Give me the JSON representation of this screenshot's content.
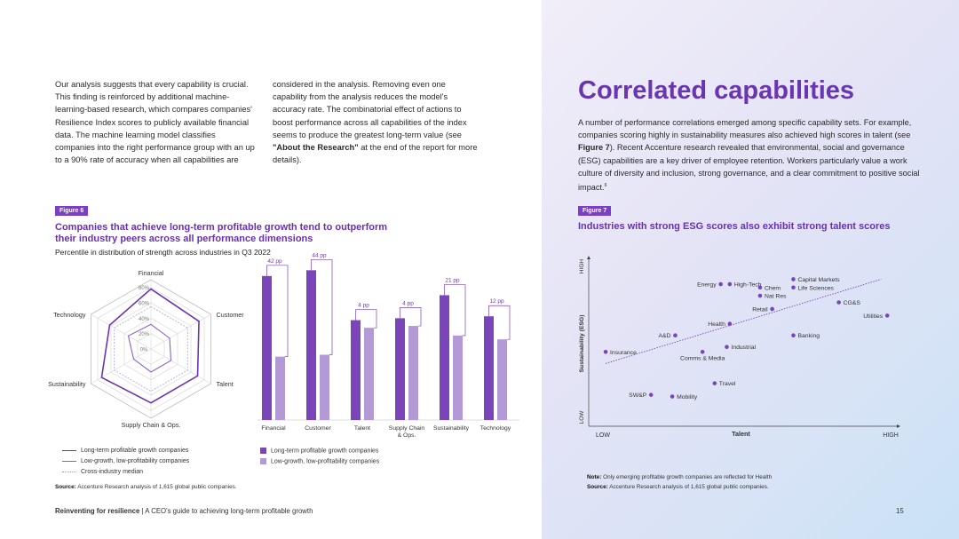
{
  "left": {
    "col1": "Our analysis suggests that every capability is crucial. This finding is reinforced by additional machine-learning-based research, which compares companies' Resilience Index scores to publicly available financial data. The machine learning model classifies companies into the right performance group with an up to a 90% rate of accuracy when all capabilities are",
    "col2_a": "considered in the analysis. Removing even one capability from the analysis reduces the model's accuracy rate. The combinatorial effect of actions to boost performance across all capabilities of the index seems to produce the greatest long-term value (see ",
    "col2_bold": "\"About the Research\"",
    "col2_b": " at the end of the report for more details).",
    "fig6": {
      "tag": "Figure 6",
      "title": "Companies that achieve long-term profitable growth tend to outperform their industry peers across all performance dimensions",
      "subtitle": "Percentile in distribution of strength across industries in Q3 2022",
      "radar_axes": [
        "Financial",
        "Customer",
        "Talent",
        "Supply Chain & Ops.",
        "Sustainability",
        "Technology"
      ],
      "radar_ticks": [
        "80%",
        "60%",
        "40%",
        "20%",
        "0%"
      ],
      "legend_lines": [
        "Long-term profitable growth companies",
        "Low-growth, low-profitability companies",
        "Cross-industry median"
      ],
      "legend_boxes": [
        "Long-term profitable growth companies",
        "Low-growth, low-profitability companies"
      ],
      "source_label": "Source:",
      "source_text": " Accenture Research analysis of 1,615 global public companies."
    }
  },
  "chart_data": [
    {
      "type": "radar",
      "axes": [
        "Financial",
        "Customer",
        "Talent",
        "Supply Chain & Ops.",
        "Sustainability",
        "Technology"
      ],
      "ticks": [
        0,
        20,
        40,
        60,
        80
      ],
      "series": [
        {
          "name": "Long-term profitable growth companies",
          "values": [
            78,
            72,
            70,
            70,
            74,
            62
          ]
        },
        {
          "name": "Low-growth, low-profitability companies",
          "values": [
            32,
            28,
            30,
            30,
            26,
            34
          ]
        },
        {
          "name": "Cross-industry median",
          "values": [
            55,
            55,
            55,
            55,
            55,
            55
          ]
        }
      ]
    },
    {
      "type": "bar",
      "categories": [
        "Financial",
        "Customer",
        "Talent",
        "Supply Chain & Ops.",
        "Sustainability",
        "Technology"
      ],
      "annotations": [
        "42 pp",
        "44 pp",
        "4 pp",
        "4 pp",
        "21 pp",
        "12 pp"
      ],
      "series": [
        {
          "name": "Long-term profitable growth companies",
          "values": [
            75,
            78,
            52,
            53,
            65,
            54
          ]
        },
        {
          "name": "Low-growth, low-profitability companies",
          "values": [
            33,
            34,
            48,
            49,
            44,
            42
          ]
        }
      ],
      "colors": [
        "#7a45b8",
        "#b39ad6"
      ]
    },
    {
      "type": "scatter",
      "title": "Industries with strong ESG scores also exhibit strong talent scores",
      "xlabel": "Talent",
      "ylabel": "Sustainability (ESG)",
      "x_low": "LOW",
      "x_high": "HIGH",
      "y_low": "LOW",
      "y_high": "HIGH",
      "trendline": true,
      "points": [
        {
          "label": "Energy",
          "x": 0.43,
          "y": 0.86
        },
        {
          "label": "High-Tech",
          "x": 0.46,
          "y": 0.86
        },
        {
          "label": "Chem",
          "x": 0.56,
          "y": 0.84
        },
        {
          "label": "Capital Markets",
          "x": 0.67,
          "y": 0.89
        },
        {
          "label": "Life Sciences",
          "x": 0.67,
          "y": 0.84
        },
        {
          "label": "Nat Res",
          "x": 0.56,
          "y": 0.79
        },
        {
          "label": "CG&S",
          "x": 0.82,
          "y": 0.75
        },
        {
          "label": "Retail",
          "x": 0.6,
          "y": 0.71
        },
        {
          "label": "Utilities",
          "x": 0.98,
          "y": 0.67
        },
        {
          "label": "Health",
          "x": 0.46,
          "y": 0.62
        },
        {
          "label": "A&D",
          "x": 0.28,
          "y": 0.55
        },
        {
          "label": "Banking",
          "x": 0.67,
          "y": 0.55
        },
        {
          "label": "Industrial",
          "x": 0.45,
          "y": 0.48
        },
        {
          "label": "Insurance",
          "x": 0.05,
          "y": 0.45
        },
        {
          "label": "Comms & Media",
          "x": 0.37,
          "y": 0.45
        },
        {
          "label": "Travel",
          "x": 0.41,
          "y": 0.26
        },
        {
          "label": "SW&P",
          "x": 0.2,
          "y": 0.19
        },
        {
          "label": "Mobility",
          "x": 0.27,
          "y": 0.18
        }
      ]
    }
  ],
  "right": {
    "title": "Correlated capabilities",
    "para_a": "A number of performance correlations emerged among specific capability sets. For example, companies scoring highly in sustainability measures also achieved high scores in talent (see ",
    "para_bold": "Figure 7",
    "para_b": "). Recent Accenture research revealed that environmental, social and governance (ESG) capabilities are a key driver of employee retention. Workers particularly value a work culture of diversity and inclusion, strong governance, and a clear commitment to positive social impact.",
    "para_sup": "6",
    "fig7": {
      "tag": "Figure 7",
      "title": "Industries with strong ESG scores also exhibit strong talent scores",
      "note_label": "Note:",
      "note_text": " Only emerging profitable growth companies are reflected for Health",
      "source_label": "Source:",
      "source_text": " Accenture Research analysis of 1,615 global public companies."
    }
  },
  "footer": {
    "bold": "Reinventing for resilience",
    "sep": " | ",
    "text": "A CEO's guide to achieving long-term profitable growth",
    "page": "15"
  },
  "colors": {
    "accent": "#6a35b0",
    "bar_dark": "#7a45b8",
    "bar_light": "#b39ad6",
    "point": "#7a45b8"
  }
}
